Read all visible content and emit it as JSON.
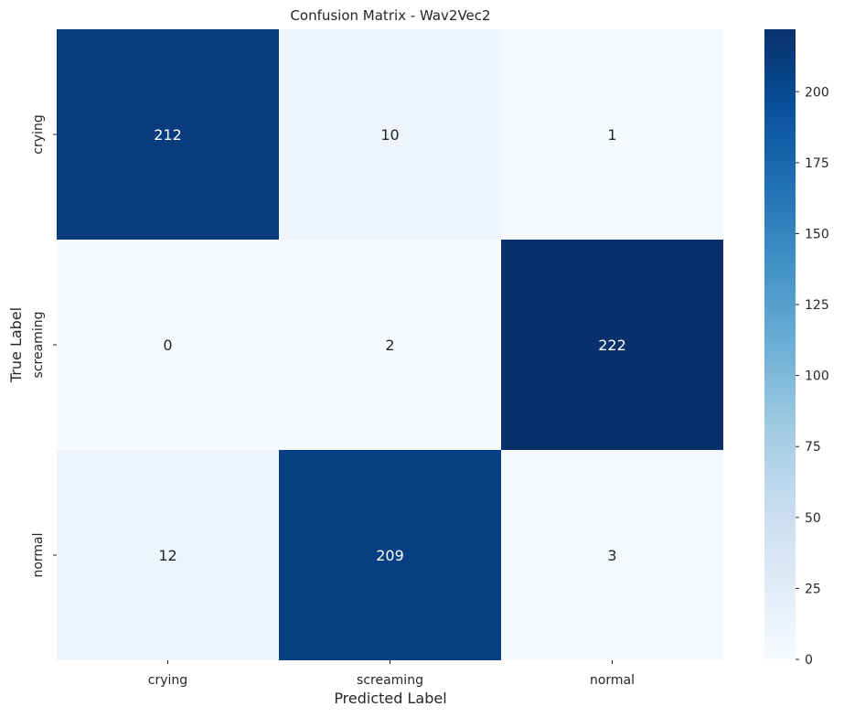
{
  "chart_data": {
    "type": "heatmap",
    "title": "Confusion Matrix - Wav2Vec2",
    "xlabel": "Predicted Label",
    "ylabel": "True Label",
    "x_categories": [
      "crying",
      "screaming",
      "normal"
    ],
    "y_categories": [
      "crying",
      "screaming",
      "normal"
    ],
    "values": [
      [
        212,
        10,
        1
      ],
      [
        0,
        2,
        222
      ],
      [
        12,
        209,
        3
      ]
    ],
    "colormap": "Blues",
    "colorbar": {
      "min": 0,
      "max": 222,
      "ticks": [
        0,
        25,
        50,
        75,
        100,
        125,
        150,
        175,
        200
      ]
    },
    "grid": false
  }
}
